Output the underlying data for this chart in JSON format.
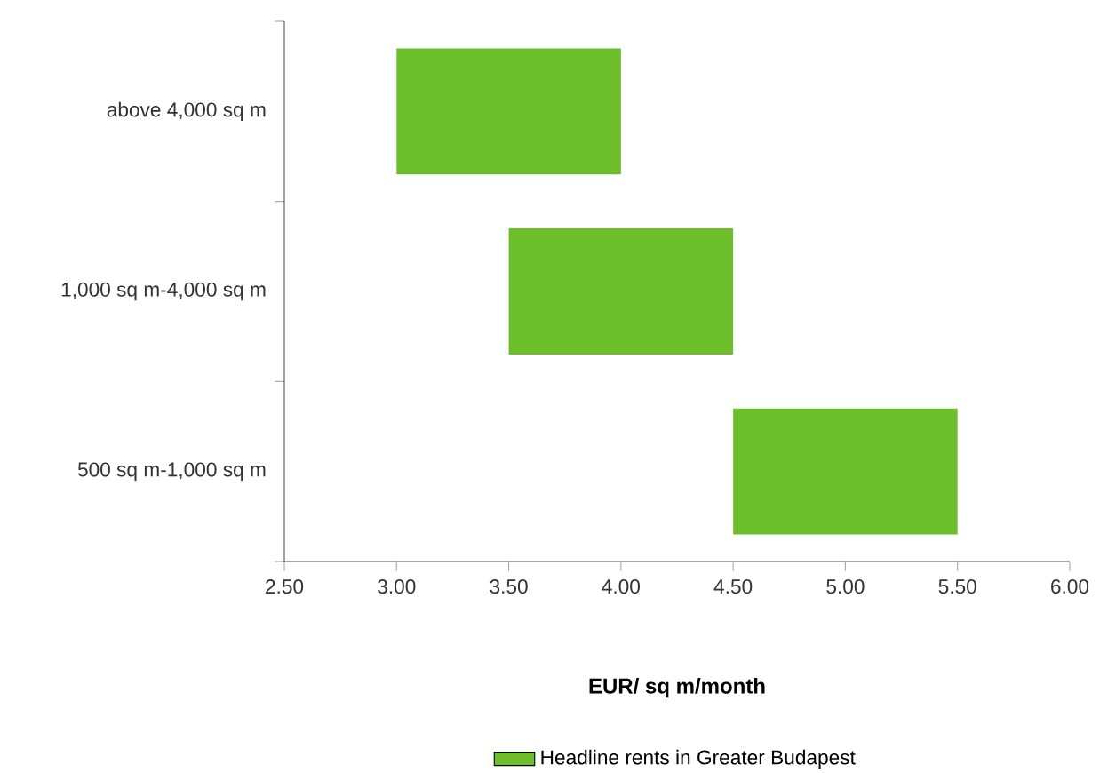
{
  "chart_data": {
    "type": "bar",
    "orientation": "horizontal",
    "categories": [
      "above 4,000 sq m",
      "1,000 sq m-4,000 sq m",
      "500 sq m-1,000 sq m"
    ],
    "series": [
      {
        "name": "Headline rents in Greater Budapest",
        "color": "#6cbf2b",
        "base": [
          3.0,
          3.5,
          4.5
        ],
        "values": [
          1.0,
          1.0,
          1.0
        ]
      }
    ],
    "xlim": [
      2.5,
      6.0
    ],
    "xticks": [
      {
        "value": 2.5,
        "label": "2.50"
      },
      {
        "value": 3.0,
        "label": "3.00"
      },
      {
        "value": 3.5,
        "label": "3.50"
      },
      {
        "value": 4.0,
        "label": "4.00"
      },
      {
        "value": 4.5,
        "label": "4.50"
      },
      {
        "value": 5.0,
        "label": "5.00"
      },
      {
        "value": 5.5,
        "label": "5.50"
      },
      {
        "value": 6.0,
        "label": "6.00"
      }
    ],
    "xlabel": "EUR/ sq m/month",
    "legend": "bottom"
  }
}
